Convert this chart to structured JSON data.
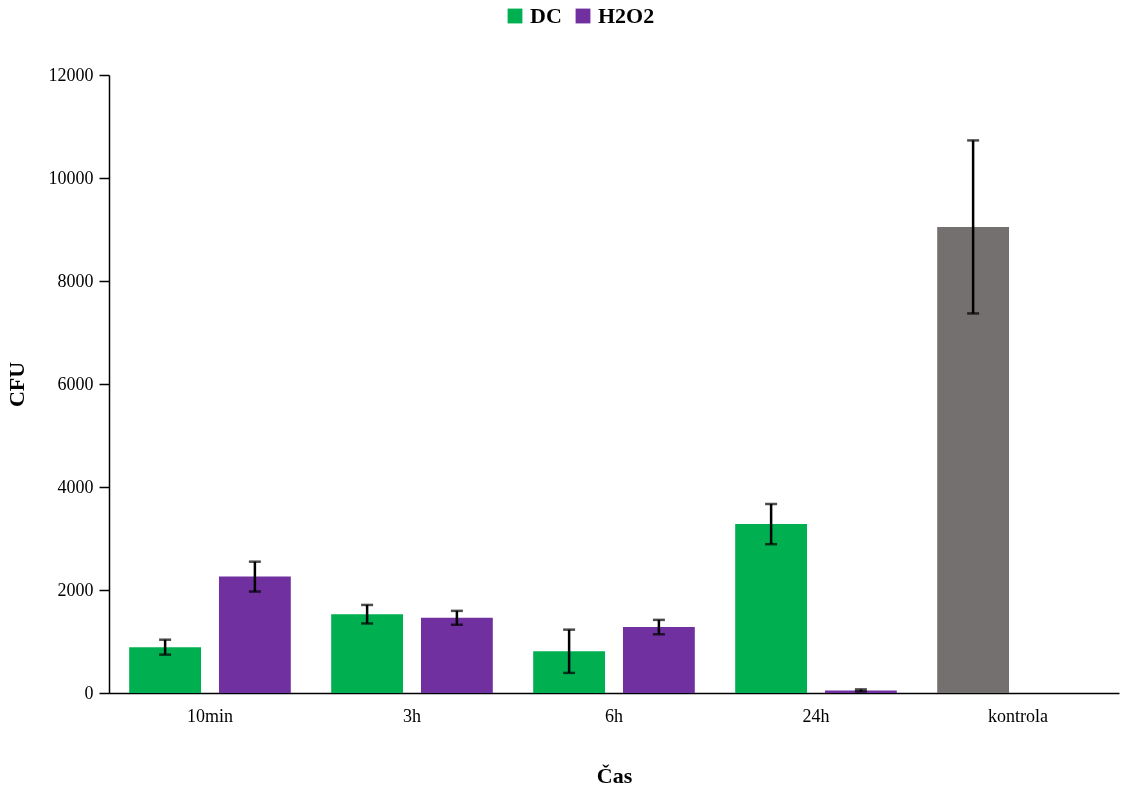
{
  "chart_data": {
    "type": "bar",
    "xlabel": "Čas",
    "ylabel": "CFU",
    "categories": [
      "10min",
      "3h",
      "6h",
      "24h",
      "kontrola"
    ],
    "series": [
      {
        "name": "DC",
        "color": "#00b050",
        "colors": [
          "#00b050",
          "#00b050",
          "#00b050",
          "#00b050",
          "#747070"
        ],
        "values": [
          890,
          1530,
          810,
          3280,
          9050
        ],
        "errors": [
          145,
          180,
          420,
          390,
          1680
        ]
      },
      {
        "name": "H2O2",
        "color": "#7030a0",
        "values": [
          2260,
          1460,
          1280,
          50,
          null
        ],
        "errors": [
          290,
          135,
          140,
          20,
          null
        ]
      }
    ],
    "ylim": [
      0,
      12000
    ],
    "yticks": [
      0,
      2000,
      4000,
      6000,
      8000,
      10000,
      12000
    ],
    "grid": false,
    "legend": "top"
  }
}
